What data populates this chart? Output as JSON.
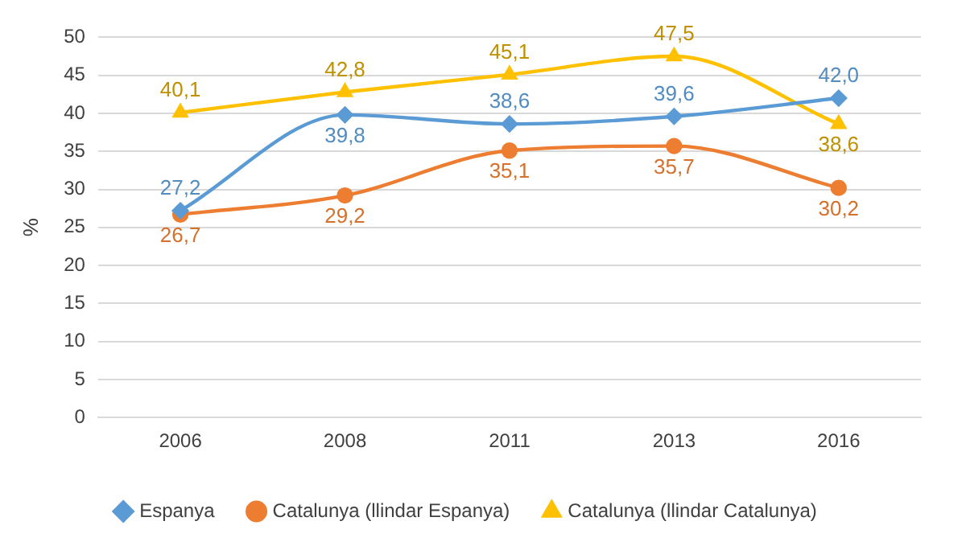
{
  "chart_data": {
    "type": "line",
    "ylabel": "%",
    "categories": [
      "2006",
      "2008",
      "2011",
      "2013",
      "2016"
    ],
    "series": [
      {
        "name": "Espanya",
        "color": "#5b9bd5",
        "marker": "diamond",
        "values": [
          27.2,
          39.8,
          38.6,
          39.6,
          42.0
        ],
        "value_labels": [
          "27,2",
          "39,8",
          "38,6",
          "39,6",
          "42,0"
        ]
      },
      {
        "name": "Catalunya (llindar Espanya)",
        "color": "#ed7d31",
        "marker": "circle",
        "values": [
          26.7,
          29.2,
          35.1,
          35.7,
          30.2
        ],
        "value_labels": [
          "26,7",
          "29,2",
          "35,1",
          "35,7",
          "30,2"
        ]
      },
      {
        "name": "Catalunya (llindar Catalunya)",
        "color": "#ffc000",
        "marker": "triangle",
        "values": [
          40.1,
          42.8,
          45.1,
          47.5,
          38.6
        ],
        "value_labels": [
          "40,1",
          "42,8",
          "45,1",
          "47,5",
          "38,6"
        ]
      }
    ],
    "ylim": [
      0,
      50
    ],
    "yticks": [
      0,
      5,
      10,
      15,
      20,
      25,
      30,
      35,
      40,
      45,
      50
    ],
    "grid": "y",
    "legend": "bottom",
    "line_style": "solid"
  }
}
